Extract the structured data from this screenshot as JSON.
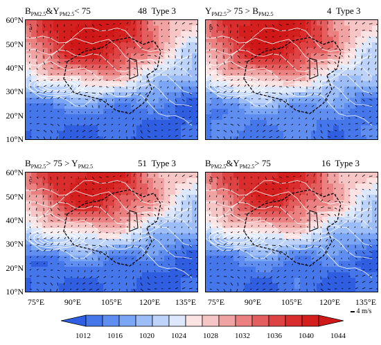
{
  "panels": [
    {
      "letter": "a",
      "title_pre": "B",
      "sub1": "PM2.5",
      "mid": "&Y",
      "sub2": "PM2.5",
      "post": "< 75",
      "count": "48",
      "type": "Type 3",
      "highA": 1.0,
      "lowB": 1.0
    },
    {
      "letter": "b",
      "title_pre": "Y",
      "sub1": "PM2.5",
      "mid": "> 75 > B",
      "sub2": "PM2.5",
      "post": "",
      "count": "4",
      "type": "Type 3",
      "highA": 0.95,
      "lowB": 0.85
    },
    {
      "letter": "c",
      "title_pre": "B",
      "sub1": "PM2.5",
      "mid": "> 75 > Y",
      "sub2": "PM2.5",
      "post": "",
      "count": "51",
      "type": "Type 3",
      "highA": 0.9,
      "lowB": 1.0
    },
    {
      "letter": "d",
      "title_pre": "B",
      "sub1": "PM2.5",
      "mid": "&Y",
      "sub2": "PM2.5",
      "post": "> 75",
      "count": "16",
      "type": "Type 3",
      "highA": 0.85,
      "lowB": 0.95
    }
  ],
  "lat_labels": [
    "60°N",
    "50°N",
    "40°N",
    "30°N",
    "20°N",
    "10°N"
  ],
  "lon_labels": [
    "75°E",
    "90°E",
    "105°E",
    "120°E",
    "135°E"
  ],
  "colorbar": {
    "labels": [
      "1012",
      "1016",
      "1020",
      "1024",
      "1028",
      "1032",
      "1036",
      "1040",
      "1044"
    ],
    "colors": [
      "#2f5fe0",
      "#4577ea",
      "#5f8ef0",
      "#7ba6f5",
      "#9cbdf8",
      "#bed3fa",
      "#dde8fd",
      "#fbe3e3",
      "#f6c5c5",
      "#f0a3a3",
      "#ea8080",
      "#e35f5f",
      "#de4343",
      "#d92c2c",
      "#d41f1f",
      "#d01818"
    ]
  },
  "vector_key": "4 m/s"
}
